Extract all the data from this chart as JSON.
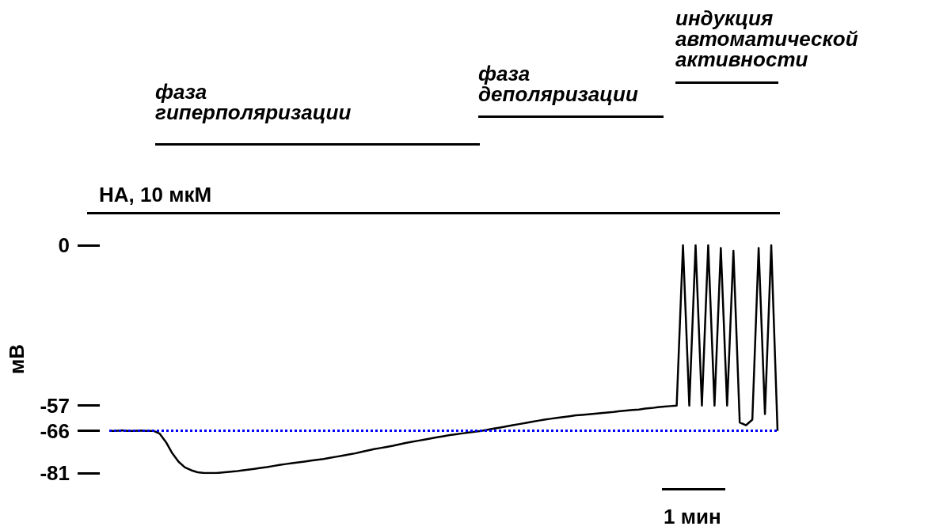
{
  "chart_data": {
    "type": "line",
    "ylabel": "мВ",
    "color": "#000000",
    "categories": [
      null,
      null,
      null,
      null,
      null,
      null,
      null,
      null,
      null,
      null,
      null,
      null,
      null,
      null,
      null,
      null,
      null,
      null,
      null,
      null,
      null,
      null,
      null,
      null,
      null,
      null,
      null,
      null,
      null,
      null,
      null,
      null,
      null,
      null,
      null,
      null,
      null,
      null,
      null,
      null,
      null,
      null,
      null,
      null,
      null,
      null,
      null,
      null,
      null,
      null,
      null,
      null,
      null,
      null,
      null,
      null,
      null,
      null,
      null,
      null,
      null,
      null,
      null,
      null,
      null,
      null,
      null,
      null,
      null,
      null,
      null,
      null,
      null,
      null,
      null,
      null,
      null,
      null,
      null,
      null,
      null,
      null,
      null,
      null,
      null,
      null,
      null,
      null,
      null,
      null,
      null,
      null,
      null,
      null,
      null,
      null,
      null,
      null,
      null,
      null,
      null,
      null,
      null,
      null,
      null,
      null,
      null
    ],
    "values": [
      -66,
      -66,
      -65.8,
      -66,
      -66,
      -65.9,
      -66,
      -66,
      -67,
      -70,
      -74,
      -77,
      -79,
      -80,
      -80.7,
      -81,
      -81,
      -81,
      -80.8,
      -80.6,
      -80.4,
      -80.1,
      -79.8,
      -79.5,
      -79.2,
      -78.9,
      -78.5,
      -78.1,
      -77.8,
      -77.5,
      -77.2,
      -76.9,
      -76.6,
      -76.3,
      -76,
      -75.6,
      -75.2,
      -74.8,
      -74.4,
      -74,
      -73.5,
      -73,
      -72.5,
      -72.1,
      -71.7,
      -71.3,
      -70.8,
      -70.3,
      -69.9,
      -69.5,
      -69.1,
      -68.7,
      -68.3,
      -67.9,
      -67.5,
      -67.2,
      -66.9,
      -66.6,
      -66.3,
      -66,
      -65.6,
      -65.2,
      -64.8,
      -64.4,
      -64,
      -63.6,
      -63.2,
      -62.8,
      -62.4,
      -62,
      -61.7,
      -61.4,
      -61.1,
      -60.8,
      -60.5,
      -60.3,
      -60.1,
      -59.9,
      -59.7,
      -59.5,
      -59.3,
      -59,
      -58.8,
      -58.6,
      -58.4,
      -58.1,
      -57.9,
      -57.6,
      -57.4,
      -57.2,
      -57,
      0,
      -57,
      0,
      -57,
      0,
      -57,
      -1,
      -57,
      -2,
      -63,
      -64,
      -62,
      -1,
      -60,
      0,
      -66
    ],
    "ylim": [
      -81,
      0
    ],
    "yticks": [
      0,
      -57,
      -66,
      -81
    ],
    "tick_labels": "y",
    "grid": false,
    "marker": "none",
    "line_style": "solid",
    "ref_lines": [
      {
        "axis": "y",
        "value": -66,
        "color": "#0000ff",
        "line_style": "dotted"
      }
    ],
    "annotations": [
      "НА, 10 мкМ",
      "фаза\nгиперполяризации",
      "фаза\nдеполяризации",
      "индукция\nавтоматической\nактивности",
      "1 мин"
    ]
  }
}
